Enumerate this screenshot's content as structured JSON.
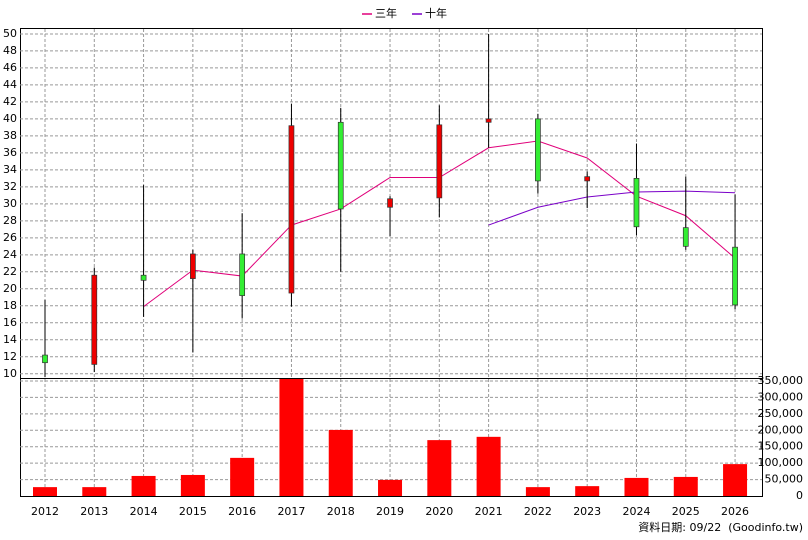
{
  "chart_data": [
    {
      "type": "candlestick",
      "open": [
        12.2,
        11.1,
        21.6,
        21.2,
        24.1,
        19.5,
        39.6,
        29.6,
        30.7,
        39.6,
        40.0,
        32.7,
        33.0,
        27.2,
        24.9
      ],
      "high": [
        18.7,
        22.5,
        32.2,
        24.6,
        28.9,
        41.8,
        41.3,
        30.9,
        41.6,
        50.0,
        40.6,
        33.8,
        37.1,
        33.2,
        31.1
      ],
      "low": [
        9.6,
        10.2,
        16.7,
        12.5,
        16.5,
        17.9,
        22.0,
        26.2,
        28.4,
        36.6,
        31.2,
        29.5,
        26.3,
        24.6,
        17.6
      ],
      "close": [
        11.3,
        21.6,
        21.0,
        24.1,
        19.2,
        39.2,
        29.4,
        30.6,
        39.3,
        40.0,
        32.7,
        33.2,
        27.3,
        25.0,
        18.1
      ],
      "up_color": "#ee0000",
      "down_color": "#33ee33",
      "series": [
        {
          "name": "三年",
          "color": "#e0007a",
          "values": [
            null,
            null,
            17.9,
            22.2,
            21.5,
            27.5,
            29.4,
            33.1,
            33.1,
            36.6,
            37.4,
            35.4,
            30.9,
            28.6,
            23.6
          ]
        },
        {
          "name": "十年",
          "color": "#7a00c8",
          "values": [
            null,
            null,
            null,
            null,
            null,
            null,
            null,
            null,
            null,
            27.5,
            29.6,
            30.8,
            31.4,
            31.5,
            31.3
          ]
        }
      ],
      "ylim": [
        9.5,
        50.7
      ],
      "yticks": [
        10,
        12,
        14,
        16,
        18,
        20,
        22,
        24,
        26,
        28,
        30,
        32,
        34,
        36,
        38,
        40,
        42,
        44,
        46,
        48,
        50
      ],
      "grid": true
    },
    {
      "type": "bar",
      "categories": [
        "2012",
        "2013",
        "2014",
        "2015",
        "2016",
        "2017",
        "2018",
        "2019",
        "2020",
        "2021",
        "2022",
        "2023",
        "2024",
        "2025",
        "2026"
      ],
      "values": [
        27000,
        27000,
        61000,
        64000,
        116000,
        356000,
        201000,
        49000,
        170000,
        180000,
        27000,
        30000,
        55000,
        58000,
        97000
      ],
      "color": "#ff0000",
      "ylim": [
        0,
        359000
      ],
      "yticks": [
        0,
        {
          "value": 50000,
          "label": "50,000"
        },
        {
          "value": 100000,
          "label": "100,000"
        },
        {
          "value": 150000,
          "label": "150,000"
        },
        {
          "value": 200000,
          "label": "200,000"
        },
        {
          "value": 250000,
          "label": "250,000"
        },
        {
          "value": 300000,
          "label": "300,000"
        },
        {
          "value": 350000,
          "label": "350,000"
        }
      ],
      "grid": true
    }
  ],
  "footer": "資料日期: 09/22  (Goodinfo.tw)"
}
